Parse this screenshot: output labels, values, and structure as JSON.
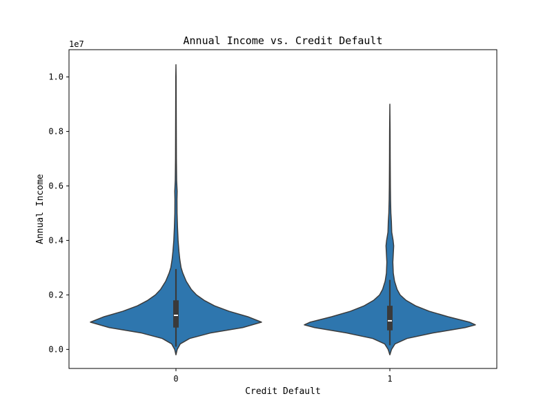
{
  "chart_data": {
    "type": "violin",
    "title": "Annual Income vs. Credit Default",
    "xlabel": "Credit Default",
    "ylabel": "Annual Income",
    "y_offset_label": "1e7",
    "y_scale_factor": 10000000,
    "ylim": [
      -0.07,
      1.1
    ],
    "yticks": [
      0.0,
      0.2,
      0.4,
      0.6,
      0.8,
      1.0
    ],
    "ytick_labels": [
      "0.0",
      "0.2",
      "0.4",
      "0.6",
      "0.8",
      "1.0"
    ],
    "categories": [
      "0",
      "1"
    ],
    "color": "#2e76ae",
    "edge_color": "#3b3b3b",
    "groups": [
      {
        "category": "0",
        "density": [
          [
            -0.02,
            0.0
          ],
          [
            0.0,
            0.015
          ],
          [
            0.02,
            0.05
          ],
          [
            0.04,
            0.16
          ],
          [
            0.06,
            0.4
          ],
          [
            0.08,
            0.78
          ],
          [
            0.1,
            1.0
          ],
          [
            0.12,
            0.84
          ],
          [
            0.14,
            0.62
          ],
          [
            0.16,
            0.45
          ],
          [
            0.18,
            0.33
          ],
          [
            0.2,
            0.24
          ],
          [
            0.22,
            0.18
          ],
          [
            0.25,
            0.12
          ],
          [
            0.28,
            0.08
          ],
          [
            0.3,
            0.06
          ],
          [
            0.33,
            0.045
          ],
          [
            0.36,
            0.035
          ],
          [
            0.4,
            0.025
          ],
          [
            0.45,
            0.018
          ],
          [
            0.5,
            0.013
          ],
          [
            0.55,
            0.012
          ],
          [
            0.58,
            0.014
          ],
          [
            0.62,
            0.008
          ],
          [
            0.7,
            0.005
          ],
          [
            0.8,
            0.004
          ],
          [
            0.9,
            0.003
          ],
          [
            1.0,
            0.002
          ],
          [
            1.045,
            0.0
          ]
        ],
        "q1": 0.08,
        "median": 0.125,
        "q3": 0.18,
        "whisker_low": 0.01,
        "whisker_high": 0.295
      },
      {
        "category": "1",
        "density": [
          [
            -0.02,
            0.0
          ],
          [
            0.0,
            0.02
          ],
          [
            0.02,
            0.06
          ],
          [
            0.04,
            0.2
          ],
          [
            0.06,
            0.5
          ],
          [
            0.08,
            0.88
          ],
          [
            0.09,
            1.0
          ],
          [
            0.1,
            0.93
          ],
          [
            0.12,
            0.68
          ],
          [
            0.14,
            0.46
          ],
          [
            0.16,
            0.3
          ],
          [
            0.18,
            0.19
          ],
          [
            0.2,
            0.12
          ],
          [
            0.22,
            0.085
          ],
          [
            0.25,
            0.055
          ],
          [
            0.28,
            0.04
          ],
          [
            0.32,
            0.035
          ],
          [
            0.35,
            0.04
          ],
          [
            0.38,
            0.045
          ],
          [
            0.4,
            0.038
          ],
          [
            0.43,
            0.022
          ],
          [
            0.47,
            0.018
          ],
          [
            0.5,
            0.012
          ],
          [
            0.55,
            0.008
          ],
          [
            0.6,
            0.006
          ],
          [
            0.7,
            0.004
          ],
          [
            0.8,
            0.003
          ],
          [
            0.9,
            0.0
          ]
        ],
        "q1": 0.07,
        "median": 0.105,
        "q3": 0.16,
        "whisker_low": 0.015,
        "whisker_high": 0.255
      }
    ],
    "grid": false,
    "legend": "none"
  }
}
